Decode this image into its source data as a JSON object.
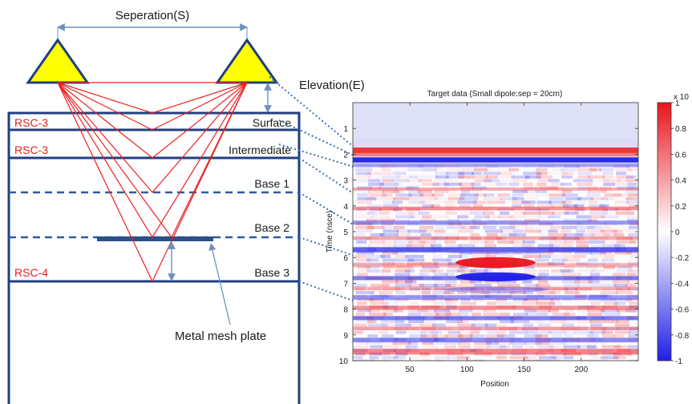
{
  "diagram": {
    "separation_label": "Seperation(S)",
    "elevation_label": "Elevation(E)",
    "layers": [
      {
        "left": "RSC-3",
        "right": "Surface"
      },
      {
        "left": "RSC-3",
        "right": "Intermediate"
      },
      {
        "left": "",
        "right": "Base 1"
      },
      {
        "left": "",
        "right": "Base 2"
      },
      {
        "left": "RSC-4",
        "right": "Base 3"
      }
    ],
    "mesh_label": "Metal mesh plate"
  },
  "chart_data": {
    "type": "heatmap",
    "title": "Target data (Small dipole:sep = 20cm)",
    "xlabel": "Position",
    "ylabel": "Time (nsce)",
    "xlim": [
      0,
      250
    ],
    "ylim": [
      10,
      0
    ],
    "xticks": [
      50,
      100,
      150,
      200
    ],
    "yticks": [
      1,
      2,
      3,
      4,
      5,
      6,
      7,
      8,
      9,
      10
    ],
    "colorbar": {
      "multiplier_label": "x 10",
      "ticks": [
        "1",
        "0.8",
        "0.6",
        "0.4",
        "0.2",
        "0",
        "-0.2",
        "-0.4",
        "-0.6",
        "-0.8",
        "-1"
      ]
    },
    "colors": {
      "positive": "#e8141c",
      "negative": "#1e1ee6",
      "zero": "#ffffff"
    }
  }
}
